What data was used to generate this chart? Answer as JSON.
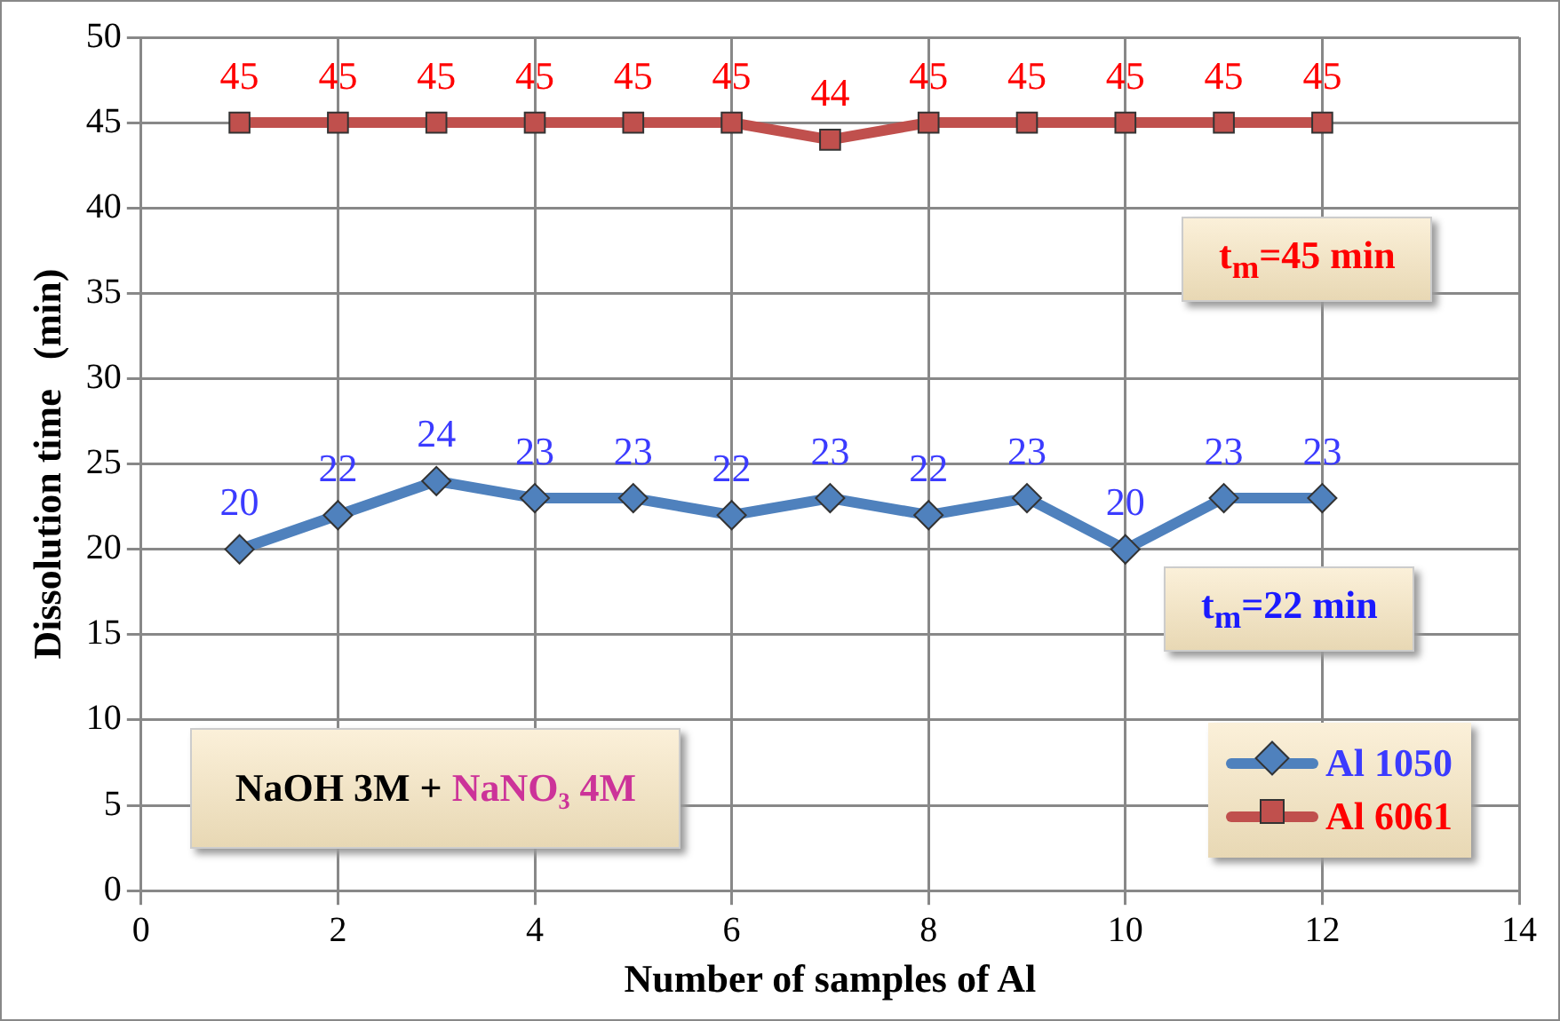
{
  "chart_data": {
    "type": "line",
    "xlabel": "Number of samples of Al",
    "ylabel": "Dissolution time   (min)",
    "x": [
      1,
      2,
      3,
      4,
      5,
      6,
      7,
      8,
      9,
      10,
      11,
      12
    ],
    "series": [
      {
        "name": "Al 1050",
        "color": "#4f81bd",
        "marker": "diamond",
        "values": [
          20,
          22,
          24,
          23,
          23,
          22,
          23,
          22,
          23,
          20,
          23,
          23
        ]
      },
      {
        "name": "Al 6061",
        "color": "#c0504d",
        "marker": "square",
        "values": [
          45,
          45,
          45,
          45,
          45,
          45,
          44,
          45,
          45,
          45,
          45,
          45
        ]
      }
    ],
    "xlim": [
      0,
      14
    ],
    "xticks": [
      0,
      2,
      4,
      6,
      8,
      10,
      12,
      14
    ],
    "ylim": [
      0,
      50
    ],
    "yticks": [
      0,
      5,
      10,
      15,
      20,
      25,
      30,
      35,
      40,
      45,
      50
    ],
    "grid": true,
    "legend": "bottom right",
    "data_labels": true,
    "line_style": "solid",
    "annotations": [
      "t$_{m}$=45 min",
      "t$_{m}$=22 min",
      "NaOH 3M + NaNO₃ 4M"
    ]
  }
}
